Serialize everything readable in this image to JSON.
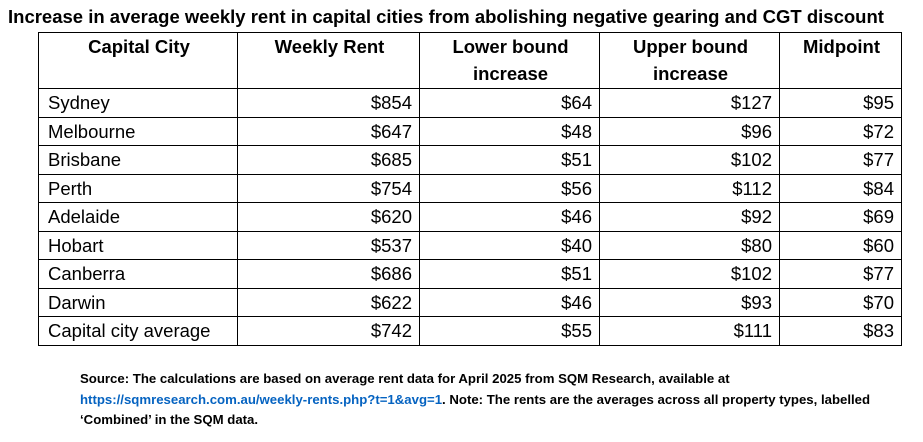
{
  "title": "Increase in average weekly rent in capital cities from abolishing negative gearing and CGT discount",
  "table": {
    "headers": [
      "Capital City",
      "Weekly Rent",
      "Lower bound increase",
      "Upper bound increase",
      "Midpoint"
    ],
    "rows": [
      [
        "Sydney",
        "$854",
        "$64",
        "$127",
        "$95"
      ],
      [
        "Melbourne",
        "$647",
        "$48",
        "$96",
        "$72"
      ],
      [
        "Brisbane",
        "$685",
        "$51",
        "$102",
        "$77"
      ],
      [
        "Perth",
        "$754",
        "$56",
        "$112",
        "$84"
      ],
      [
        "Adelaide",
        "$620",
        "$46",
        "$92",
        "$69"
      ],
      [
        "Hobart",
        "$537",
        "$40",
        "$80",
        "$60"
      ],
      [
        "Canberra",
        "$686",
        "$51",
        "$102",
        "$77"
      ],
      [
        "Darwin",
        "$622",
        "$46",
        "$93",
        "$70"
      ],
      [
        "Capital city average",
        "$742",
        "$55",
        "$111",
        "$83"
      ]
    ]
  },
  "source": {
    "prefix": "Source: The calculations are based on average rent data for April 2025 from SQM Research, available at ",
    "link": "https://sqmresearch.com.au/weekly-rents.php?t=1&avg=1",
    "suffix": ". Note: The rents are the averages across all property types, labelled ‘Combined’ in the SQM data.",
    "link_color": "#0563c1"
  }
}
